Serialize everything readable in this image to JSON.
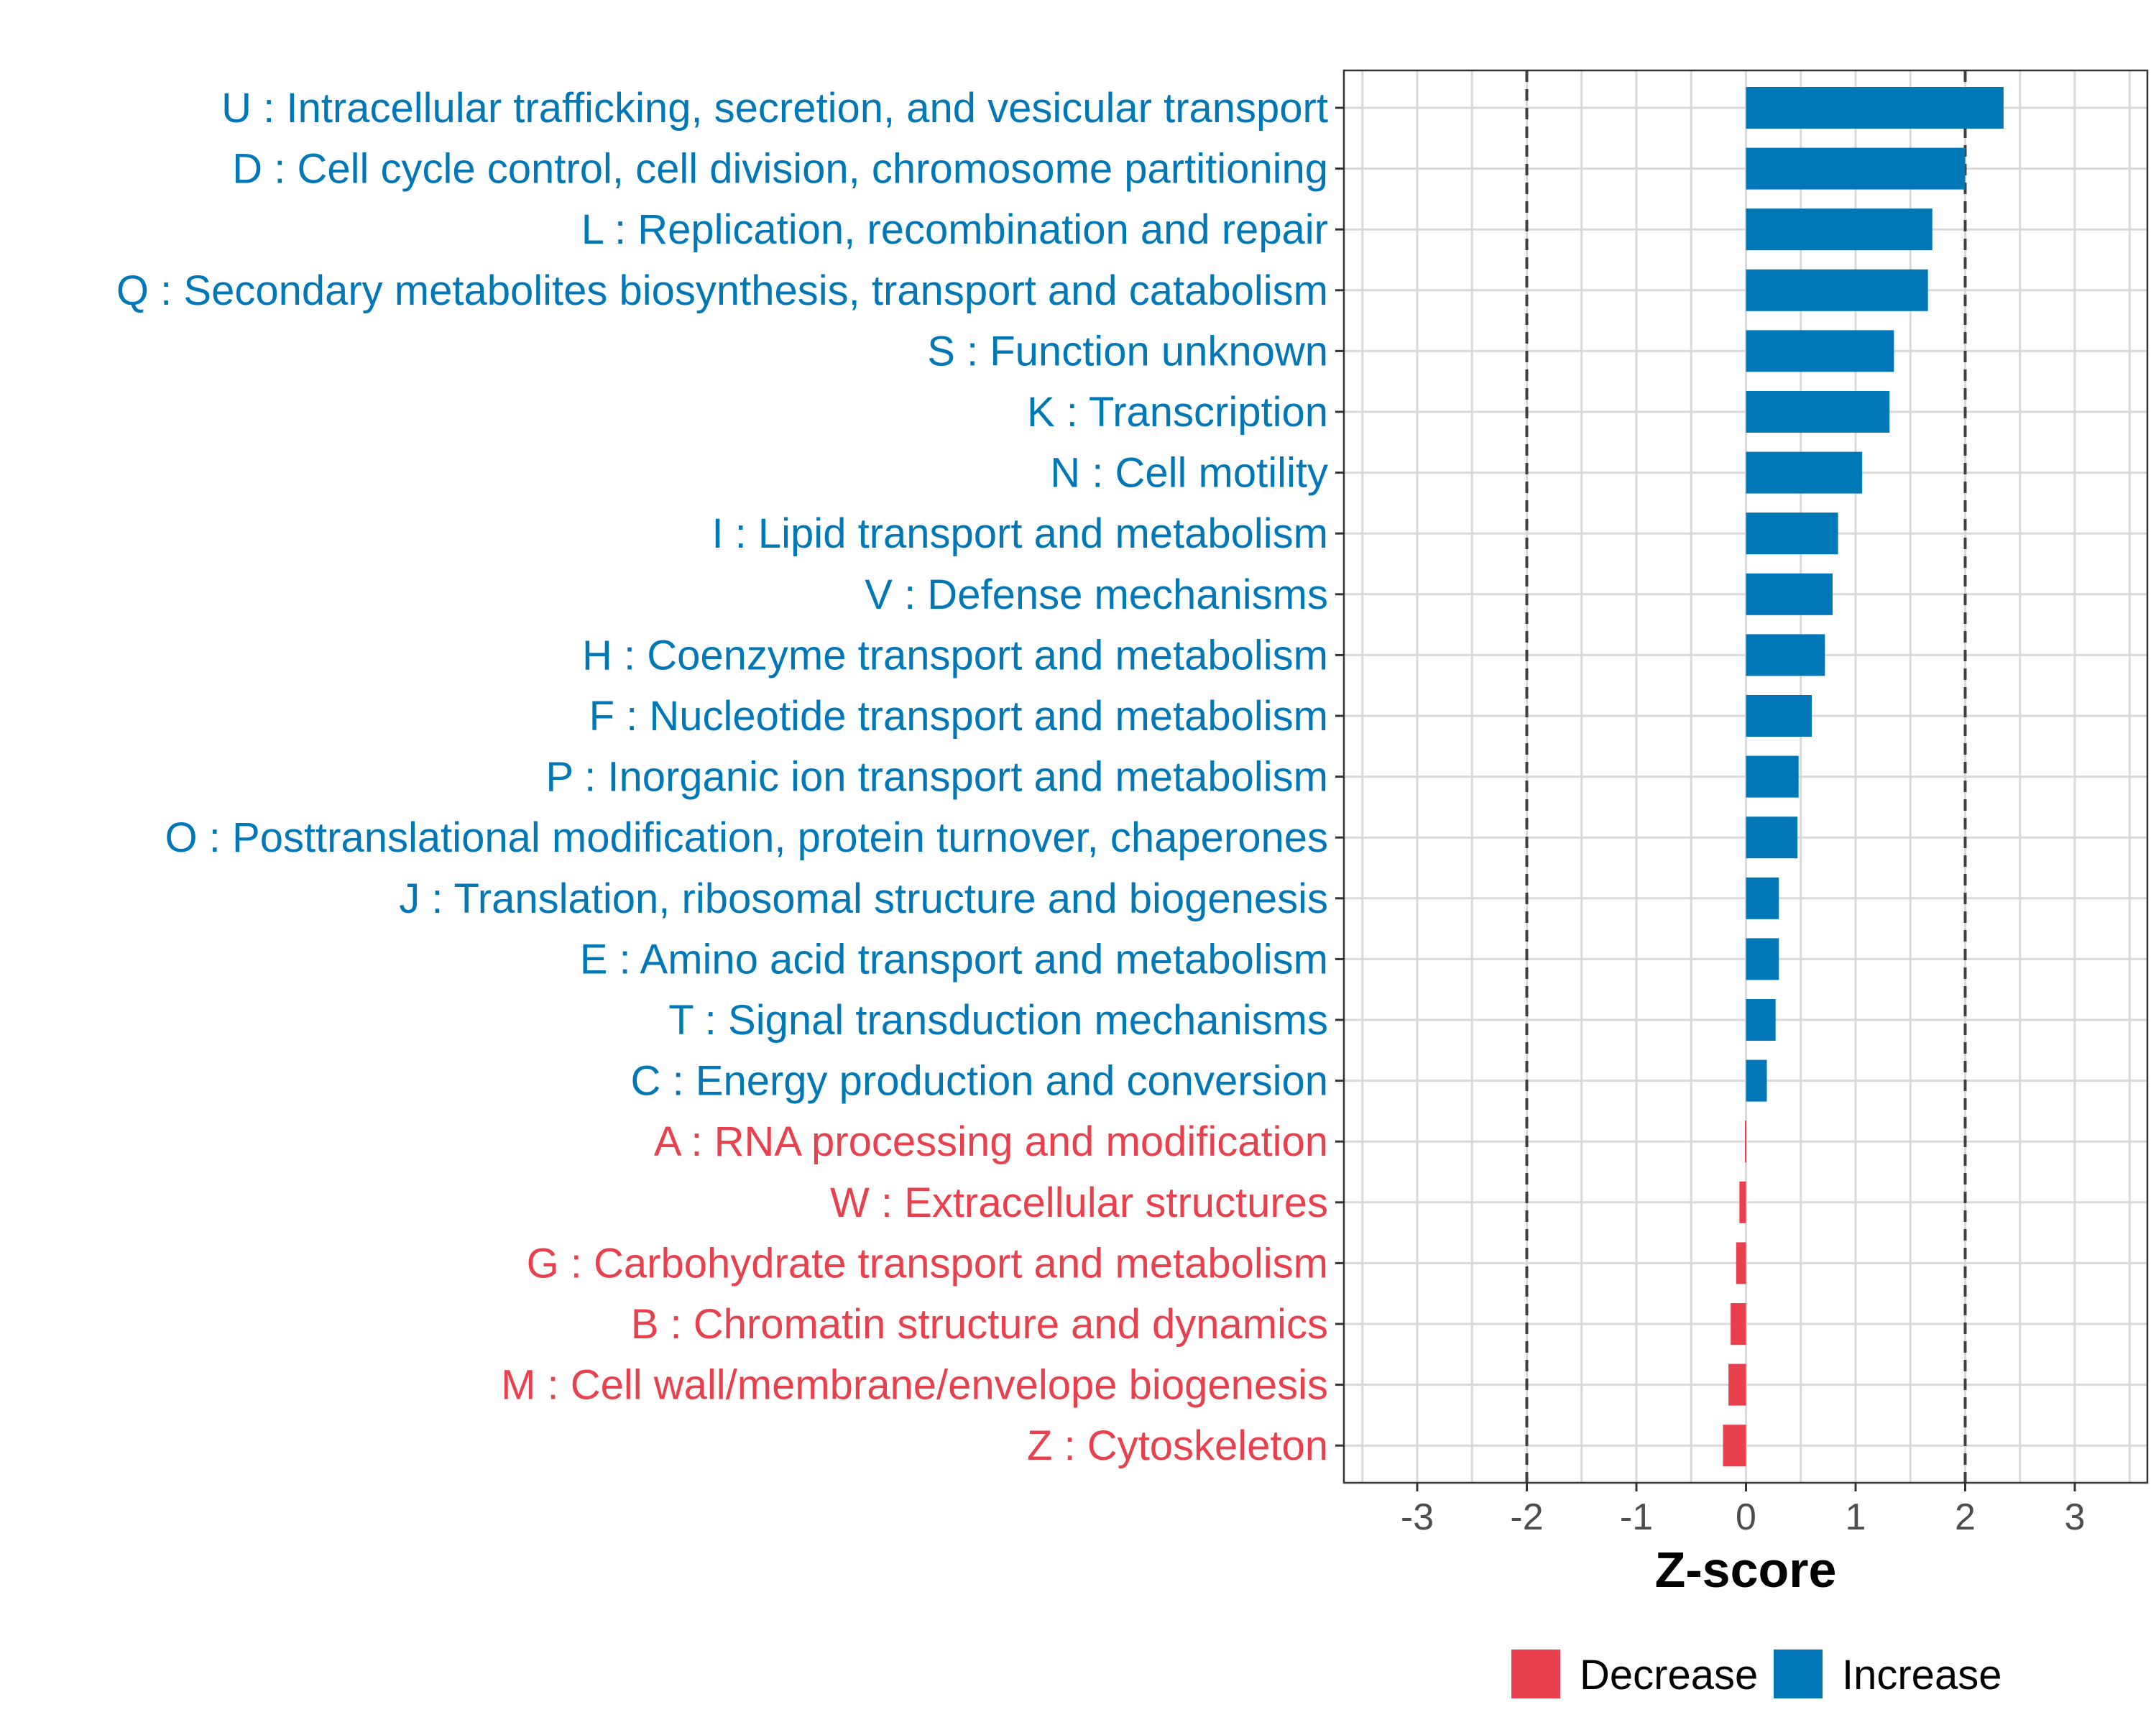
{
  "chart_data": {
    "type": "bar",
    "orientation": "horizontal",
    "title": "",
    "xlabel": "Z-score",
    "ylabel": "",
    "xlim": [
      -3.7,
      3.7
    ],
    "xticks": [
      -3,
      -2,
      -1,
      0,
      1,
      2,
      3
    ],
    "xtick_labels": [
      "-3",
      "-2",
      "-1",
      "0",
      "1",
      "2",
      "3"
    ],
    "reference_lines": [
      -2,
      2
    ],
    "grid": true,
    "legend_position": "bottom",
    "colors": {
      "Decrease": "#E8404C",
      "Increase": "#0077B6"
    },
    "legend": [
      {
        "name": "Decrease",
        "color": "#E8404C"
      },
      {
        "name": "Increase",
        "color": "#0077B6"
      }
    ],
    "categories": [
      "U : Intracellular trafficking, secretion, and vesicular transport",
      "D : Cell cycle control, cell division, chromosome partitioning",
      "L : Replication, recombination and repair",
      "Q : Secondary metabolites biosynthesis, transport and catabolism",
      "S : Function unknown",
      "K : Transcription",
      "N : Cell motility",
      "I : Lipid transport and metabolism",
      "V : Defense mechanisms",
      "H : Coenzyme transport and metabolism",
      "F : Nucleotide transport and metabolism",
      "P : Inorganic ion transport and metabolism",
      "O : Posttranslational modification, protein turnover, chaperones",
      "J : Translation, ribosomal structure and biogenesis",
      "E : Amino acid transport and metabolism",
      "T : Signal transduction mechanisms",
      "C : Energy production and conversion",
      "A : RNA processing and modification",
      "W : Extracellular structures",
      "G : Carbohydrate transport and metabolism",
      "B : Chromatin structure and dynamics",
      "M : Cell wall/membrane/envelope biogenesis",
      "Z : Cytoskeleton"
    ],
    "values": [
      2.35,
      2.0,
      1.7,
      1.66,
      1.35,
      1.31,
      1.06,
      0.84,
      0.79,
      0.72,
      0.6,
      0.48,
      0.47,
      0.3,
      0.3,
      0.27,
      0.19,
      -0.01,
      -0.06,
      -0.09,
      -0.14,
      -0.16,
      -0.21
    ],
    "groups": [
      "Increase",
      "Increase",
      "Increase",
      "Increase",
      "Increase",
      "Increase",
      "Increase",
      "Increase",
      "Increase",
      "Increase",
      "Increase",
      "Increase",
      "Increase",
      "Increase",
      "Increase",
      "Increase",
      "Increase",
      "Decrease",
      "Decrease",
      "Decrease",
      "Decrease",
      "Decrease",
      "Decrease"
    ]
  }
}
